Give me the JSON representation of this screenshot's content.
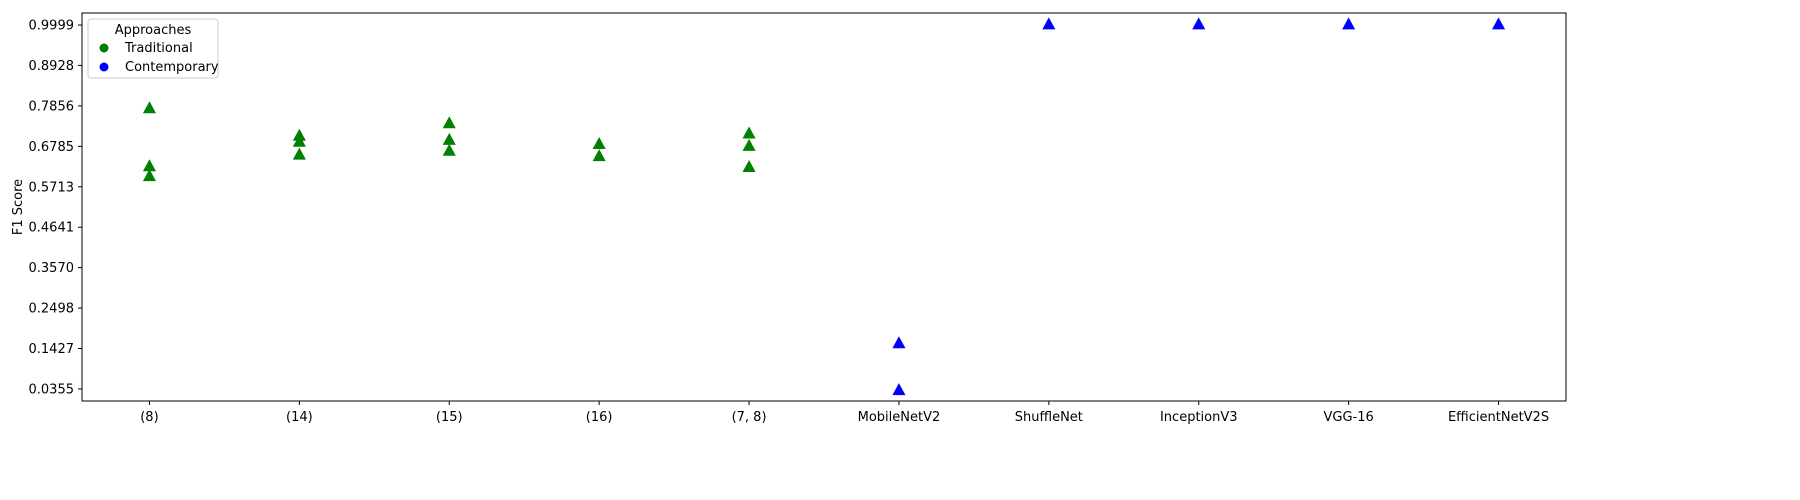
{
  "chart_data": {
    "type": "scatter",
    "ylabel": "F1 Score",
    "xlabel": "",
    "title": "",
    "ylim": [
      0.0036,
      1.0318
    ],
    "y_ticks": [
      "0.0355",
      "0.1427",
      "0.2498",
      "0.3570",
      "0.4641",
      "0.5713",
      "0.6785",
      "0.7856",
      "0.8928",
      "0.9999"
    ],
    "categories": [
      "(8)",
      "(14)",
      "(15)",
      "(16)",
      "(7, 8)",
      "MobileNetV2",
      "ShuffleNet",
      "InceptionV3",
      "VGG-16",
      "EfficientNetV2S"
    ],
    "grid": false,
    "legend": {
      "title": "Approaches",
      "position": "top-left",
      "entries": [
        {
          "label": "Traditional",
          "color": "#008000"
        },
        {
          "label": "Contemporary",
          "color": "#0000ff"
        }
      ]
    },
    "marker": "triangle",
    "series": [
      {
        "name": "Traditional",
        "color": "#008000",
        "points": [
          {
            "category": "(8)",
            "y": 0.778
          },
          {
            "category": "(8)",
            "y": 0.624
          },
          {
            "category": "(8)",
            "y": 0.598
          },
          {
            "category": "(14)",
            "y": 0.705
          },
          {
            "category": "(14)",
            "y": 0.689
          },
          {
            "category": "(14)",
            "y": 0.655
          },
          {
            "category": "(15)",
            "y": 0.738
          },
          {
            "category": "(15)",
            "y": 0.694
          },
          {
            "category": "(15)",
            "y": 0.665
          },
          {
            "category": "(16)",
            "y": 0.683
          },
          {
            "category": "(16)",
            "y": 0.651
          },
          {
            "category": "(7, 8)",
            "y": 0.711
          },
          {
            "category": "(7, 8)",
            "y": 0.678
          },
          {
            "category": "(7, 8)",
            "y": 0.622
          }
        ]
      },
      {
        "name": "Contemporary",
        "color": "#0000ff",
        "points": [
          {
            "category": "MobileNetV2",
            "y": 0.155
          },
          {
            "category": "MobileNetV2",
            "y": 0.031
          },
          {
            "category": "ShuffleNet",
            "y": 0.9999
          },
          {
            "category": "InceptionV3",
            "y": 0.9999
          },
          {
            "category": "VGG-16",
            "y": 0.9999
          },
          {
            "category": "EfficientNetV2S",
            "y": 0.9999
          }
        ]
      }
    ]
  }
}
